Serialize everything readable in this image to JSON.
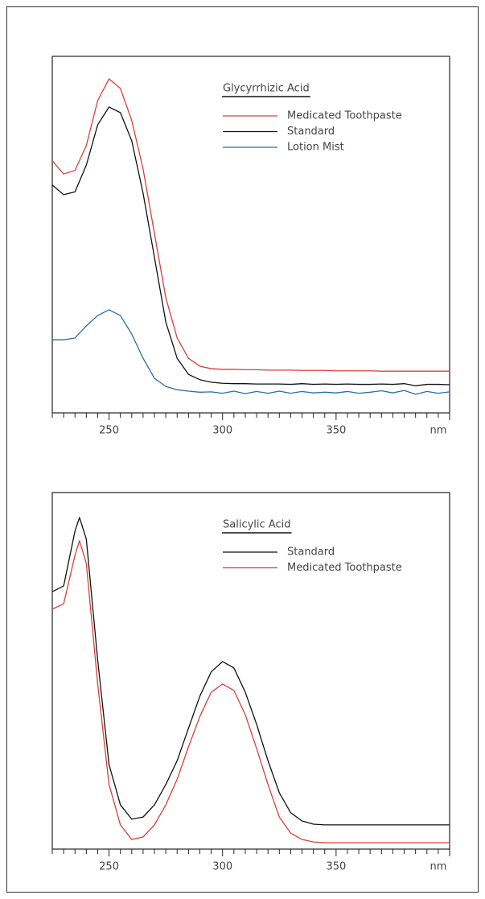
{
  "chart_data": [
    {
      "type": "line",
      "title": "Glycyrrhizic Acid",
      "x": [
        225,
        230,
        235,
        240,
        245,
        250,
        255,
        260,
        265,
        270,
        275,
        280,
        285,
        290,
        295,
        300,
        305,
        310,
        315,
        320,
        325,
        330,
        335,
        340,
        345,
        350,
        355,
        360,
        365,
        370,
        375,
        380,
        385,
        390,
        395,
        400
      ],
      "series": [
        {
          "name": "Medicated Toothpaste",
          "color": "#d9403a",
          "values": [
            70.7,
            67,
            68,
            75,
            87.6,
            93.7,
            91,
            82,
            68.4,
            50.3,
            32.3,
            21,
            15.3,
            13.1,
            12.4,
            12.2,
            12.2,
            12.1,
            12.1,
            12,
            12,
            12,
            11.9,
            11.9,
            11.9,
            11.8,
            11.8,
            11.8,
            11.8,
            11.7,
            11.7,
            11.7,
            11.7,
            11.7,
            11.7,
            11.7
          ]
        },
        {
          "name": "Standard",
          "color": "#111111",
          "values": [
            63.9,
            61.2,
            62,
            69.5,
            80.8,
            85.8,
            84.2,
            76.3,
            61.6,
            43.6,
            25.5,
            15.3,
            10.8,
            9.3,
            8.6,
            8.3,
            8.2,
            8.2,
            8.1,
            8.1,
            8.1,
            8,
            8.2,
            8,
            8.1,
            8,
            8.1,
            8,
            8,
            8.1,
            8,
            8.2,
            7.6,
            8,
            8,
            7.9
          ]
        },
        {
          "name": "Lotion Mist",
          "color": "#2e6da4",
          "values": [
            20.5,
            20.5,
            21,
            24.4,
            27.3,
            28.9,
            27.3,
            22.1,
            15.3,
            9.7,
            7.4,
            6.5,
            6.1,
            5.8,
            5.9,
            5.5,
            6.1,
            5.4,
            6,
            5.5,
            6.1,
            5.5,
            6,
            5.6,
            5.8,
            5.6,
            6,
            5.5,
            5.8,
            6.2,
            5.6,
            6.3,
            5.2,
            6,
            5.5,
            5.9
          ]
        }
      ],
      "xlim": [
        225,
        400
      ],
      "ylim": [
        0,
        100
      ],
      "xticks": [
        250,
        300,
        350,
        {
          "value": 400,
          "label": "nm"
        }
      ],
      "xminorticks": [
        225,
        230,
        235,
        240,
        245,
        255,
        260,
        265,
        270,
        275,
        280,
        285,
        290,
        295,
        305,
        310,
        315,
        320,
        325,
        330,
        335,
        340,
        345,
        355,
        360,
        365,
        370,
        375,
        380,
        385,
        390,
        395
      ]
    },
    {
      "type": "line",
      "title": "Salicylic Acid",
      "x": [
        225,
        230,
        235,
        237,
        240,
        245,
        250,
        255,
        260,
        265,
        270,
        275,
        280,
        285,
        290,
        295,
        300,
        305,
        310,
        315,
        320,
        325,
        330,
        335,
        340,
        345,
        350,
        355,
        360,
        365,
        370,
        375,
        380,
        385,
        390,
        395,
        400
      ],
      "series": [
        {
          "name": "Standard",
          "color": "#111111",
          "values": [
            72.2,
            73.8,
            89.2,
            93,
            86.9,
            53,
            23.7,
            12.4,
            8.4,
            9,
            12.4,
            18.1,
            24.8,
            33.9,
            42.9,
            49.7,
            52.6,
            50.8,
            44,
            35,
            24.8,
            15.8,
            10.2,
            7.9,
            7,
            6.8,
            6.8,
            6.8,
            6.8,
            6.8,
            6.8,
            6.8,
            6.8,
            6.8,
            6.8,
            6.8,
            6.8
          ]
        },
        {
          "name": "Medicated Toothpaste",
          "color": "#d9403a",
          "values": [
            67.3,
            68.8,
            82.4,
            86.5,
            80.1,
            46.3,
            18.1,
            6.8,
            2.7,
            3.4,
            6.8,
            12.4,
            19.6,
            28.7,
            37.2,
            44,
            46.3,
            44.5,
            37.7,
            28.2,
            18.1,
            9,
            4.5,
            2.7,
            2,
            1.8,
            1.8,
            1.8,
            1.8,
            1.8,
            1.8,
            1.8,
            1.8,
            1.8,
            1.8,
            1.8,
            1.8
          ]
        }
      ],
      "xlim": [
        225,
        400
      ],
      "ylim": [
        0,
        100
      ],
      "xticks": [
        250,
        300,
        350,
        {
          "value": 400,
          "label": "nm"
        }
      ],
      "xminorticks": [
        225,
        230,
        235,
        240,
        245,
        255,
        260,
        265,
        270,
        275,
        280,
        285,
        290,
        295,
        305,
        310,
        315,
        320,
        325,
        330,
        335,
        340,
        345,
        355,
        360,
        365,
        370,
        375,
        380,
        385,
        390,
        395
      ]
    }
  ]
}
